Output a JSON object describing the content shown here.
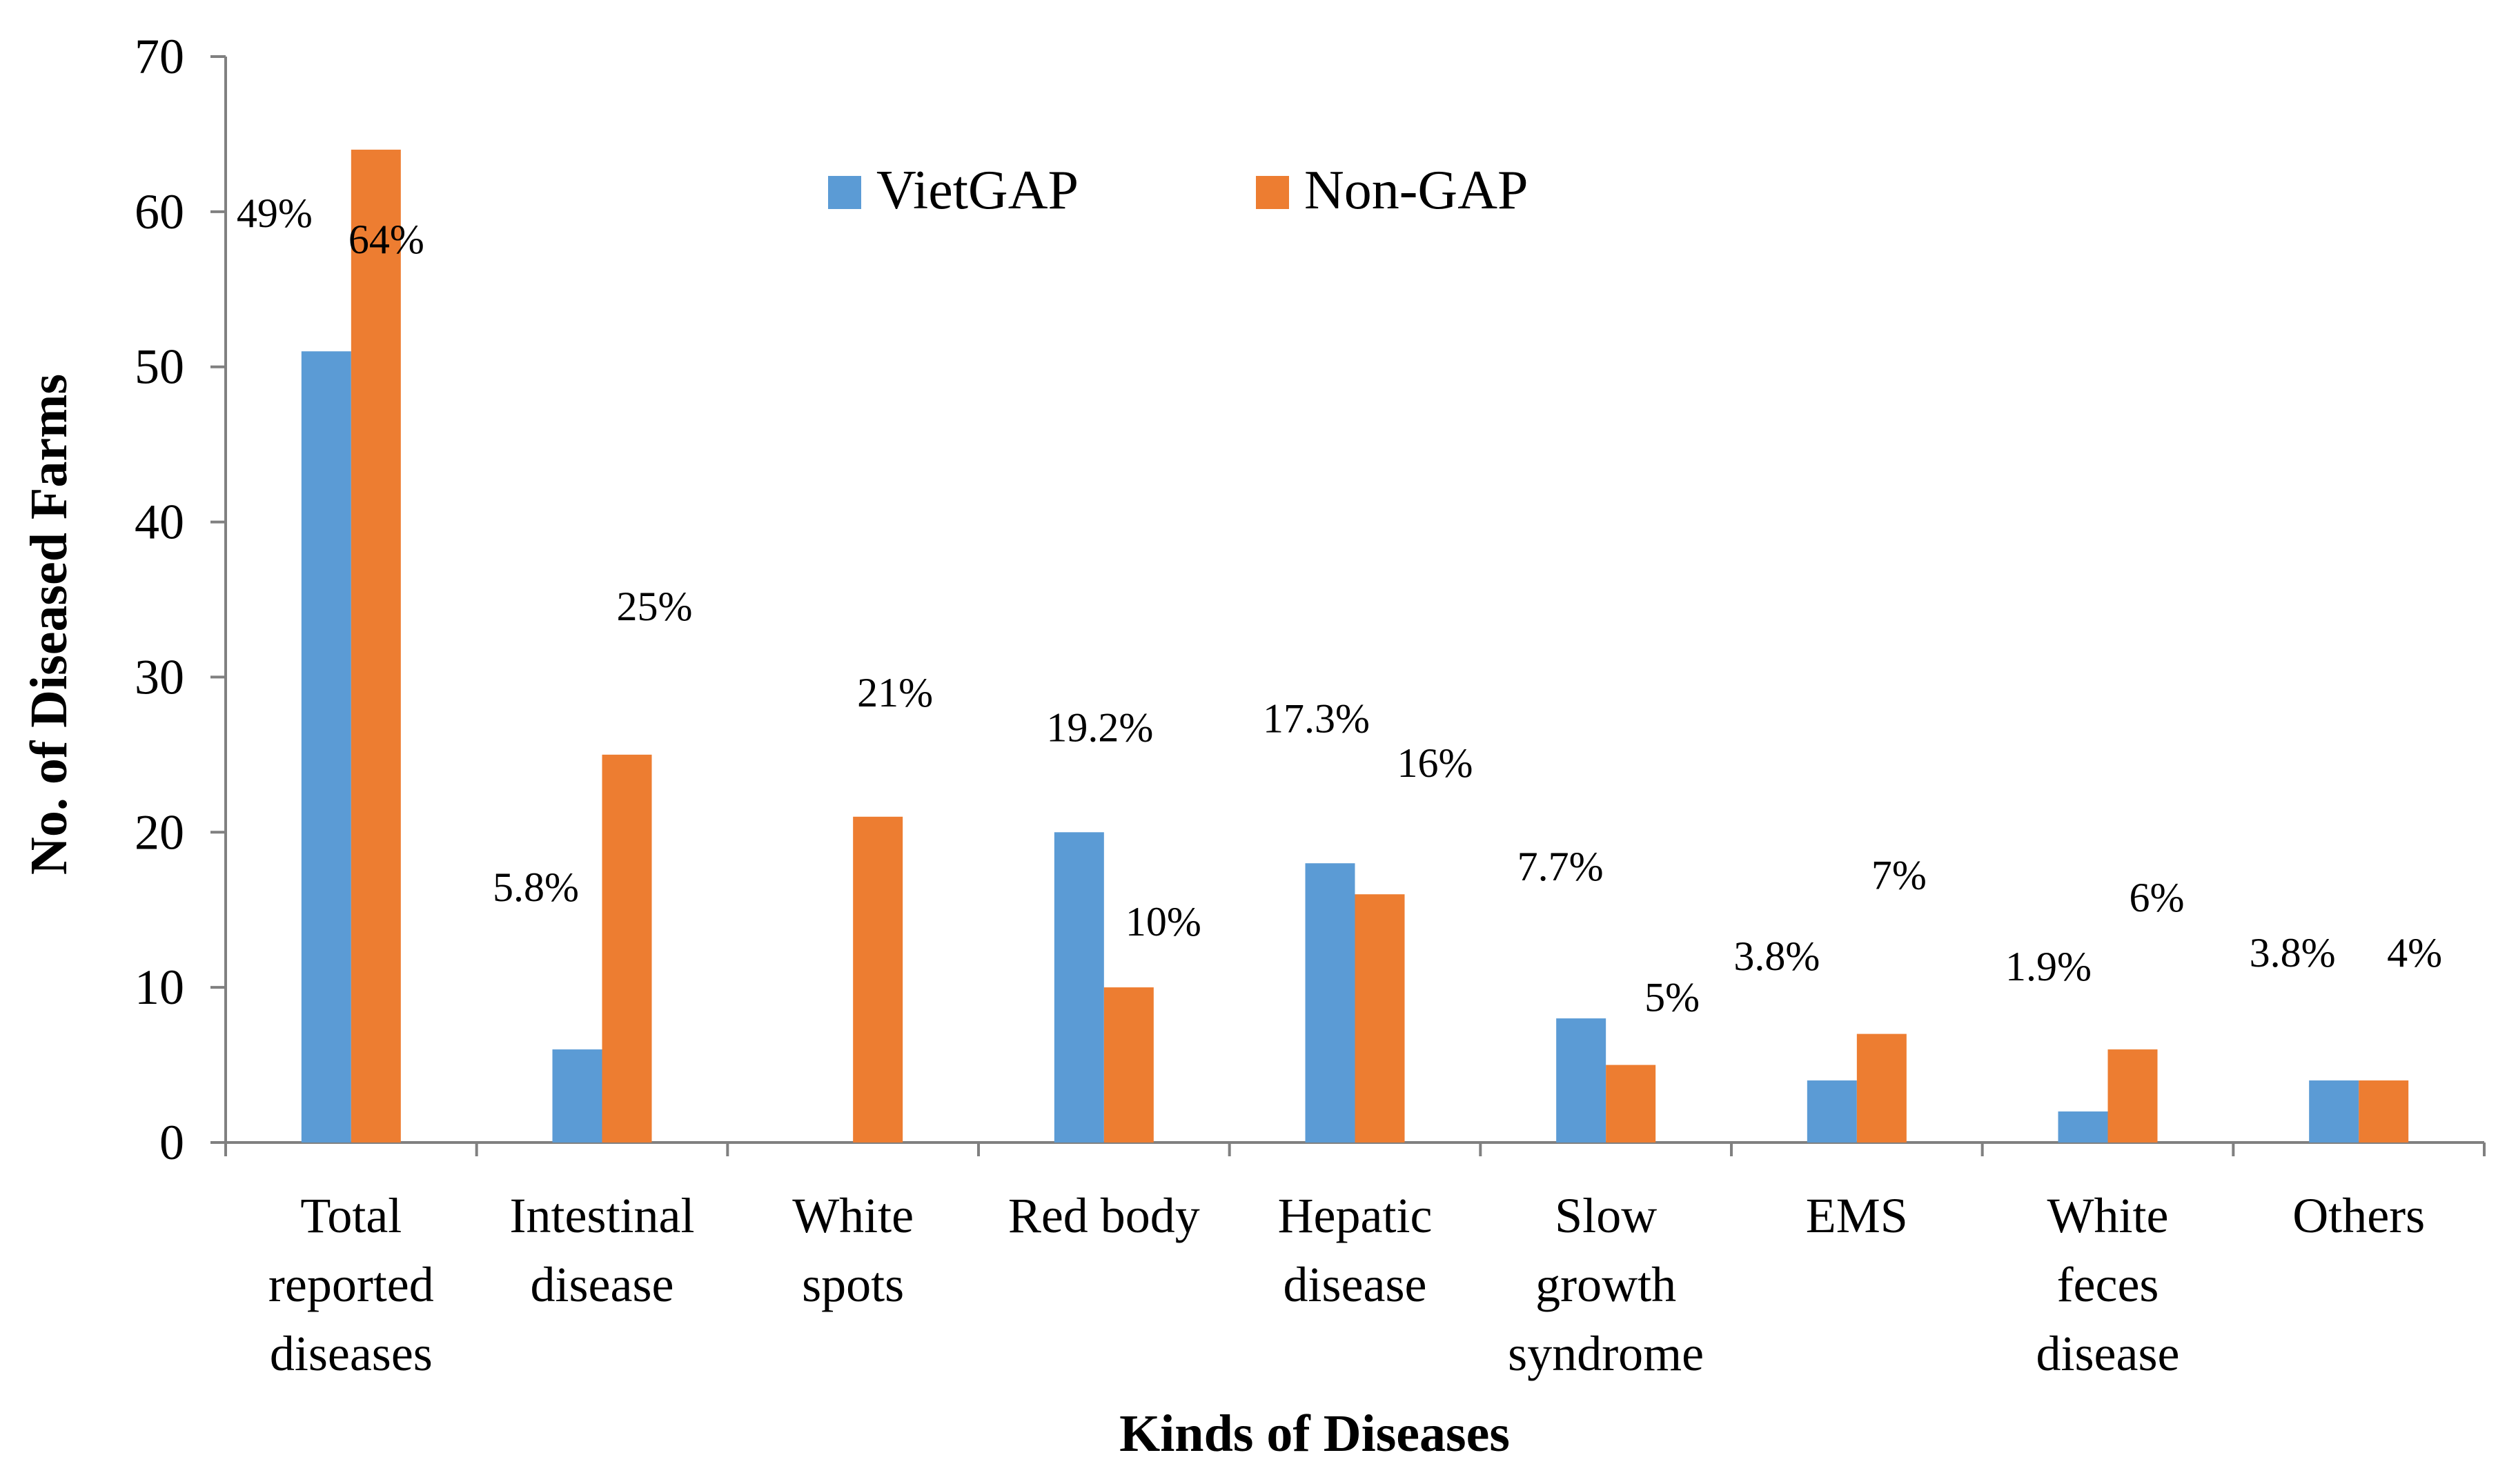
{
  "chart_data": {
    "type": "bar",
    "title": "",
    "xlabel": "Kinds of Diseases",
    "ylabel": "No. of Diseased Farms",
    "ylim": [
      0,
      70
    ],
    "yticks": [
      "0",
      "10",
      "20",
      "30",
      "40",
      "50",
      "60",
      "70"
    ],
    "ytick_values": [
      0,
      10,
      20,
      30,
      40,
      50,
      60,
      70
    ],
    "grid": false,
    "legend_position": "top-center",
    "categories": [
      [
        "Total",
        "reported",
        "diseases"
      ],
      [
        "Intestinal",
        "disease"
      ],
      [
        "White",
        "spots"
      ],
      [
        "Red body"
      ],
      [
        "Hepatic",
        "disease"
      ],
      [
        "Slow",
        "growth",
        "syndrome"
      ],
      [
        "EMS"
      ],
      [
        "White",
        "feces",
        "disease"
      ],
      [
        "Others"
      ]
    ],
    "series": [
      {
        "name": "VietGAP",
        "color": "#5b9bd5",
        "values": [
          51,
          6,
          0,
          20,
          18,
          8,
          4,
          2,
          4
        ],
        "labels": [
          "49%",
          "5.8%",
          "",
          "19.2%",
          "17.3%",
          "7.7%",
          "3.8%",
          "1.9%",
          "3.8%"
        ]
      },
      {
        "name": "Non-GAP",
        "color": "#ed7d31",
        "values": [
          64,
          25,
          21,
          10,
          16,
          5,
          7,
          6,
          4
        ],
        "labels": [
          "64%",
          "25%",
          "21%",
          "10%",
          "16%",
          "5%",
          "7%",
          "6%",
          "4%"
        ]
      }
    ]
  }
}
